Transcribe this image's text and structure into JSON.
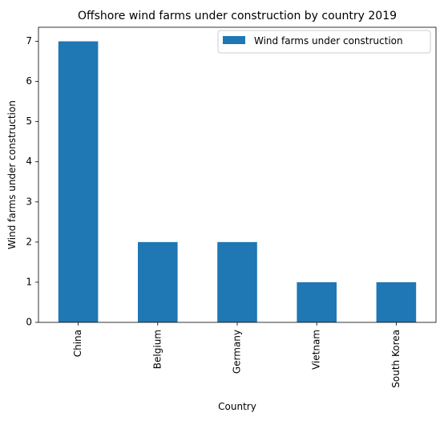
{
  "chart_data": {
    "type": "bar",
    "title": "Offshore wind farms under construction by country 2019",
    "xlabel": "Country",
    "ylabel": "Wind farms under construction",
    "categories": [
      "China",
      "Belgium",
      "Germany",
      "Vietnam",
      "South Korea"
    ],
    "series": [
      {
        "name": "Wind farms under construction",
        "values": [
          7,
          2,
          2,
          1,
          1
        ],
        "color": "#1f77b4"
      }
    ],
    "ylim": [
      0,
      7.35
    ],
    "yticks": [
      "0",
      "1",
      "2",
      "3",
      "4",
      "5",
      "6",
      "7"
    ],
    "grid": false,
    "legend": "top-right"
  }
}
